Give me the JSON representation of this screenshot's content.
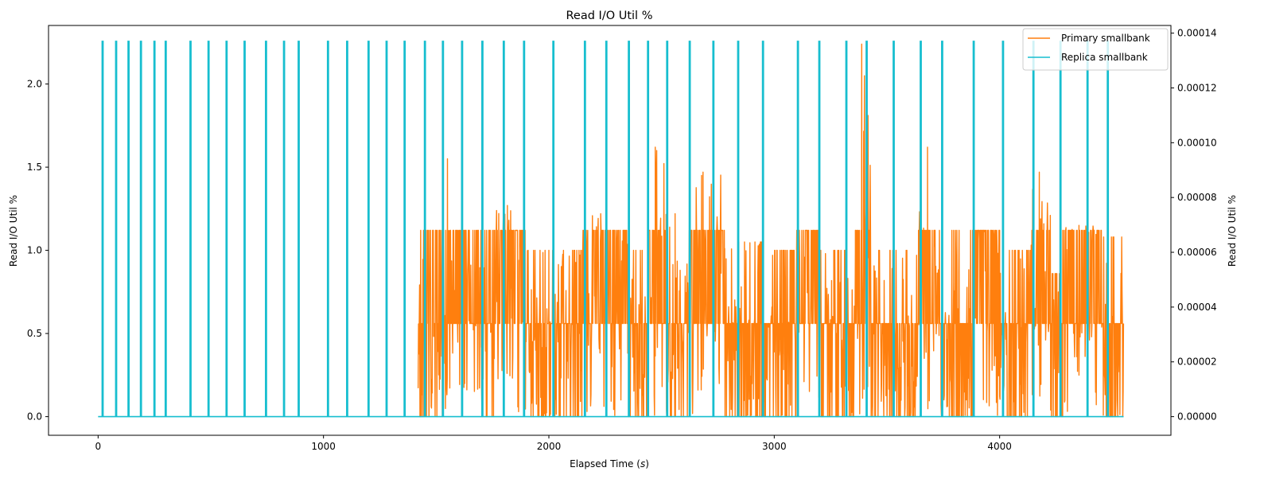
{
  "chart_data": {
    "type": "line",
    "title": "Read I/O Util %",
    "xlabel": "Elapsed Time (s)",
    "ylabel_left": "Read I/O Util %",
    "ylabel_right": "Read I/O Util %",
    "xlim": [
      -220,
      4760
    ],
    "ylim_left": [
      -0.112,
      2.352
    ],
    "ylim_right": [
      -6.8e-06,
      0.0001428
    ],
    "xticks": [
      0,
      1000,
      2000,
      3000,
      4000
    ],
    "xtick_labels": [
      "0",
      "1000",
      "2000",
      "3000",
      "4000"
    ],
    "yticks_left": [
      0.0,
      0.5,
      1.0,
      1.5,
      2.0
    ],
    "ytick_labels_left": [
      "0.0",
      "0.5",
      "1.0",
      "1.5",
      "2.0"
    ],
    "yticks_right": [
      0,
      2e-05,
      4e-05,
      6e-05,
      8e-05,
      0.0001,
      0.00012,
      0.00014
    ],
    "ytick_labels_right": [
      "0.00000",
      "0.00002",
      "0.00004",
      "0.00006",
      "0.00008",
      "0.00010",
      "0.00012",
      "0.00014"
    ],
    "grid": false,
    "legend_position": "top-right",
    "series": [
      {
        "name": "Primary smallbank",
        "axis": "left",
        "color": "#ff7f0e",
        "x_start": 1420,
        "x_end": 4550,
        "typical_levels": [
          0.0,
          0.56,
          1.12
        ],
        "segments": [
          {
            "x": [
              1420,
              1530
            ],
            "regime": "mixed",
            "max": 1.12
          },
          {
            "x": [
              1530,
              1580
            ],
            "regime": "high",
            "max": 1.55
          },
          {
            "x": [
              1580,
              1700
            ],
            "regime": "high",
            "max": 1.12
          },
          {
            "x": [
              1700,
              1760
            ],
            "regime": "mixed",
            "max": 1.12
          },
          {
            "x": [
              1760,
              1900
            ],
            "regime": "high",
            "max": 1.27
          },
          {
            "x": [
              1900,
              2150
            ],
            "regime": "low",
            "max": 1.0
          },
          {
            "x": [
              2150,
              2350
            ],
            "regime": "high",
            "max": 1.22
          },
          {
            "x": [
              2350,
              2440
            ],
            "regime": "low",
            "max": 1.0
          },
          {
            "x": [
              2440,
              2520
            ],
            "regime": "high",
            "max": 1.62
          },
          {
            "x": [
              2520,
              2620
            ],
            "regime": "low",
            "max": 1.22
          },
          {
            "x": [
              2620,
              2780
            ],
            "regime": "high",
            "max": 1.47
          },
          {
            "x": [
              2780,
              3000
            ],
            "regime": "low",
            "max": 1.05
          },
          {
            "x": [
              3000,
              3100
            ],
            "regime": "mixed",
            "max": 1.0
          },
          {
            "x": [
              3100,
              3200
            ],
            "regime": "high",
            "max": 1.12
          },
          {
            "x": [
              3200,
              3360
            ],
            "regime": "low",
            "max": 1.0
          },
          {
            "x": [
              3360,
              3430
            ],
            "regime": "high",
            "max": 2.24
          },
          {
            "x": [
              3430,
              3640
            ],
            "regime": "low",
            "max": 1.0
          },
          {
            "x": [
              3640,
              3740
            ],
            "regime": "high",
            "max": 1.62
          },
          {
            "x": [
              3740,
              3880
            ],
            "regime": "low",
            "max": 1.12
          },
          {
            "x": [
              3880,
              4000
            ],
            "regime": "high",
            "max": 1.12
          },
          {
            "x": [
              4000,
              4140
            ],
            "regime": "low",
            "max": 1.0
          },
          {
            "x": [
              4140,
              4230
            ],
            "regime": "high",
            "max": 1.47
          },
          {
            "x": [
              4230,
              4280
            ],
            "regime": "low",
            "max": 0.86
          },
          {
            "x": [
              4280,
              4460
            ],
            "regime": "high",
            "max": 1.15
          },
          {
            "x": [
              4460,
              4550
            ],
            "regime": "low",
            "max": 1.08
          }
        ]
      },
      {
        "name": "Replica smallbank",
        "axis": "right",
        "color": "#17becf",
        "baseline": 0,
        "x_start": 0,
        "x_end": 4550,
        "spike_height": 0.000137,
        "spike_x": [
          20,
          80,
          135,
          190,
          250,
          300,
          410,
          490,
          570,
          650,
          745,
          825,
          890,
          1020,
          1105,
          1200,
          1280,
          1360,
          1450,
          1530,
          1615,
          1705,
          1800,
          1890,
          2020,
          2160,
          2255,
          2355,
          2440,
          2525,
          2625,
          2730,
          2840,
          2950,
          3105,
          3200,
          3320,
          3410,
          3530,
          3650,
          3745,
          3885,
          4015,
          4150,
          4270,
          4390,
          4480
        ]
      }
    ]
  }
}
